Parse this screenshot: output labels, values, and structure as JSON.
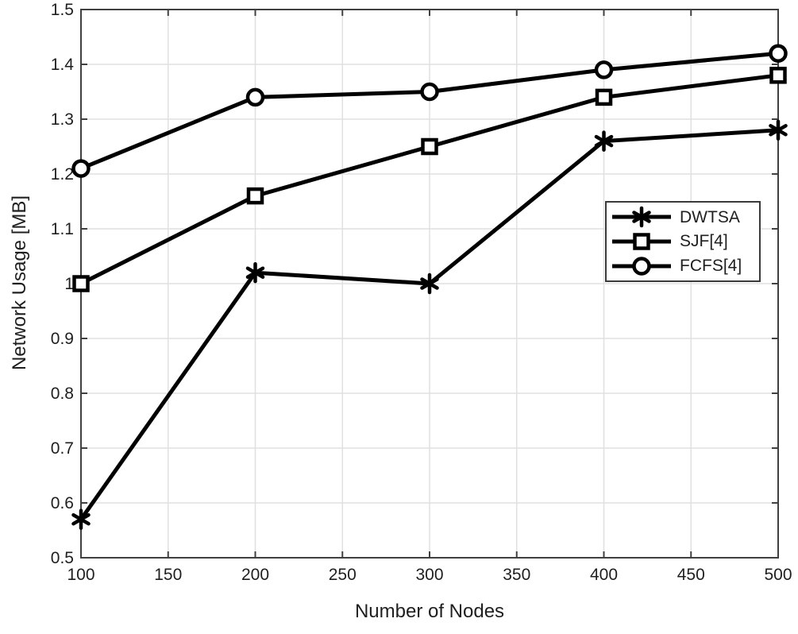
{
  "chart_data": {
    "type": "line",
    "title": "",
    "xlabel": "Number of Nodes",
    "ylabel": "Network Usage [MB]",
    "x": [
      100,
      200,
      300,
      400,
      500
    ],
    "series": [
      {
        "name": "DWTSA",
        "marker": "asterisk",
        "values": [
          0.57,
          1.02,
          1.0,
          1.26,
          1.28
        ]
      },
      {
        "name": "SJF[4]",
        "marker": "square",
        "values": [
          1.0,
          1.16,
          1.25,
          1.34,
          1.38
        ]
      },
      {
        "name": "FCFS[4]",
        "marker": "circle",
        "values": [
          1.21,
          1.34,
          1.35,
          1.39,
          1.42
        ]
      }
    ],
    "xlim": [
      100,
      500
    ],
    "ylim": [
      0.5,
      1.5
    ],
    "xticks": [
      100,
      150,
      200,
      250,
      300,
      350,
      400,
      450,
      500
    ],
    "xtick_labels": [
      "100",
      "150",
      "200",
      "250",
      "300",
      "350",
      "400",
      "450",
      "500"
    ],
    "yticks": [
      0.5,
      0.6,
      0.7,
      0.8,
      0.9,
      1.0,
      1.1,
      1.2,
      1.3,
      1.4,
      1.5
    ],
    "ytick_labels": [
      "0.5",
      "0.6",
      "0.7",
      "0.8",
      "0.9",
      "1",
      "1.1",
      "1.2",
      "1.3",
      "1.4",
      "1.5"
    ],
    "grid": true,
    "legend_position": "right-middle",
    "colors": {
      "line": "#000000",
      "grid": "#e0e0e0",
      "axis": "#404040",
      "text": "#1f1f1f",
      "background": "#ffffff"
    }
  }
}
